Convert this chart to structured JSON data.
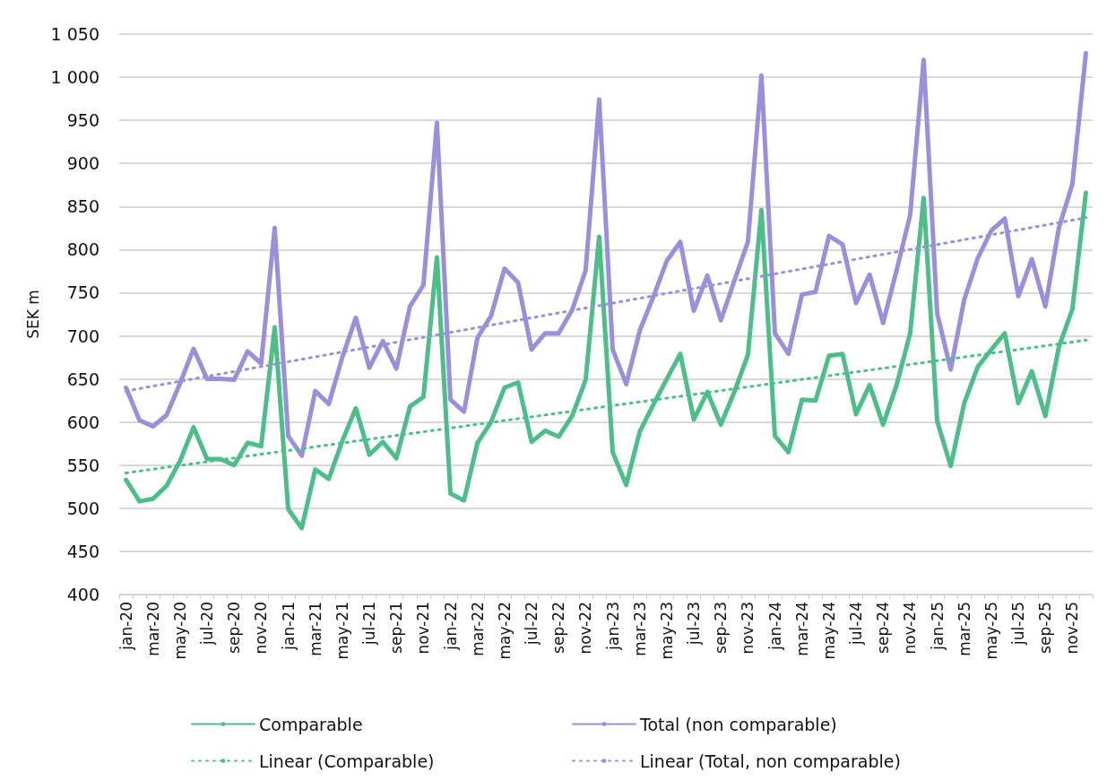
{
  "chart_data": {
    "type": "line",
    "ylabel": "SEK m",
    "categories": [
      "jan-20",
      null,
      "mar-20",
      null,
      "may-20",
      null,
      "jul-20",
      null,
      "sep-20",
      null,
      "nov-20",
      null,
      "jan-21",
      null,
      "mar-21",
      null,
      "may-21",
      null,
      "jul-21",
      null,
      "sep-21",
      null,
      "nov-21",
      null,
      "jan-22",
      null,
      "mar-22",
      null,
      "may-22",
      null,
      "jul-22",
      null,
      "sep-22",
      null,
      "nov-22",
      null,
      "jan-23",
      null,
      "mar-23",
      null,
      "may-23",
      null,
      "jul-23",
      null,
      "sep-23",
      null,
      "nov-23",
      null,
      "jan-24",
      null,
      "mar-24",
      null,
      "may-24",
      null,
      "jul-24",
      null,
      "sep-24",
      null,
      "nov-24",
      null,
      "jan-25",
      null,
      "mar-25",
      null,
      "may-25",
      null,
      "jul-25",
      null,
      "sep-25",
      null,
      "nov-25",
      null
    ],
    "series": [
      {
        "name": "Comparable",
        "color": "#4cbe88",
        "values": [
          533,
          508,
          511,
          526,
          555,
          594,
          557,
          557,
          550,
          576,
          572,
          710,
          499,
          477,
          545,
          534,
          578,
          616,
          562,
          577,
          558,
          618,
          629,
          791,
          517,
          509,
          576,
          600,
          640,
          646,
          577,
          590,
          583,
          607,
          649,
          815,
          565,
          527,
          589,
          620,
          650,
          679,
          603,
          635,
          597,
          635,
          678,
          846,
          584,
          565,
          626,
          625,
          677,
          679,
          609,
          643,
          597,
          643,
          703,
          860,
          601,
          549,
          622,
          664,
          684,
          703,
          622,
          659,
          607,
          687,
          731,
          866
        ]
      },
      {
        "name": "Total (non comparable)",
        "color": "#9b8fdb",
        "values": [
          640,
          602,
          595,
          608,
          645,
          685,
          650,
          650,
          649,
          682,
          668,
          825,
          584,
          561,
          636,
          621,
          675,
          721,
          663,
          694,
          662,
          734,
          759,
          947,
          626,
          612,
          698,
          723,
          778,
          762,
          684,
          703,
          703,
          730,
          776,
          974,
          684,
          644,
          706,
          745,
          787,
          809,
          729,
          770,
          718,
          764,
          809,
          1002,
          703,
          679,
          748,
          751,
          816,
          806,
          738,
          771,
          715,
          776,
          840,
          1020,
          726,
          661,
          742,
          790,
          822,
          836,
          746,
          789,
          734,
          825,
          876,
          1028
        ]
      },
      {
        "name": "Linear (Comparable)",
        "color": "#4cbe88",
        "line_style": "dotted",
        "values": [
          541,
          null,
          null,
          null,
          null,
          null,
          null,
          null,
          null,
          null,
          null,
          null,
          null,
          null,
          null,
          null,
          null,
          null,
          null,
          null,
          null,
          null,
          null,
          null,
          null,
          null,
          null,
          null,
          null,
          null,
          null,
          null,
          null,
          null,
          null,
          null,
          null,
          null,
          null,
          null,
          null,
          null,
          null,
          null,
          null,
          null,
          null,
          null,
          null,
          null,
          null,
          null,
          null,
          null,
          null,
          null,
          null,
          null,
          null,
          null,
          null,
          null,
          null,
          null,
          null,
          null,
          null,
          null,
          null,
          null,
          null,
          695
        ]
      },
      {
        "name": "Linear (Total, non comparable)",
        "color": "#9b8fdb",
        "line_style": "dotted",
        "values": [
          636,
          null,
          null,
          null,
          null,
          null,
          null,
          null,
          null,
          null,
          null,
          null,
          null,
          null,
          null,
          null,
          null,
          null,
          null,
          null,
          null,
          null,
          null,
          null,
          null,
          null,
          null,
          null,
          null,
          null,
          null,
          null,
          null,
          null,
          null,
          null,
          null,
          null,
          null,
          null,
          null,
          null,
          null,
          null,
          null,
          null,
          null,
          null,
          null,
          null,
          null,
          null,
          null,
          null,
          null,
          null,
          null,
          null,
          null,
          null,
          null,
          null,
          null,
          null,
          null,
          null,
          null,
          null,
          null,
          null,
          null,
          837
        ]
      }
    ],
    "ylim": [
      400,
      1050
    ],
    "yticks": [
      400,
      450,
      500,
      550,
      600,
      650,
      700,
      750,
      800,
      850,
      900,
      950,
      {
        "value": 1000,
        "label": "1 000"
      },
      {
        "value": 1050,
        "label": "1 050"
      }
    ],
    "grid": "y",
    "legend": "bottom",
    "marker": "none",
    "line_style": "solid"
  }
}
